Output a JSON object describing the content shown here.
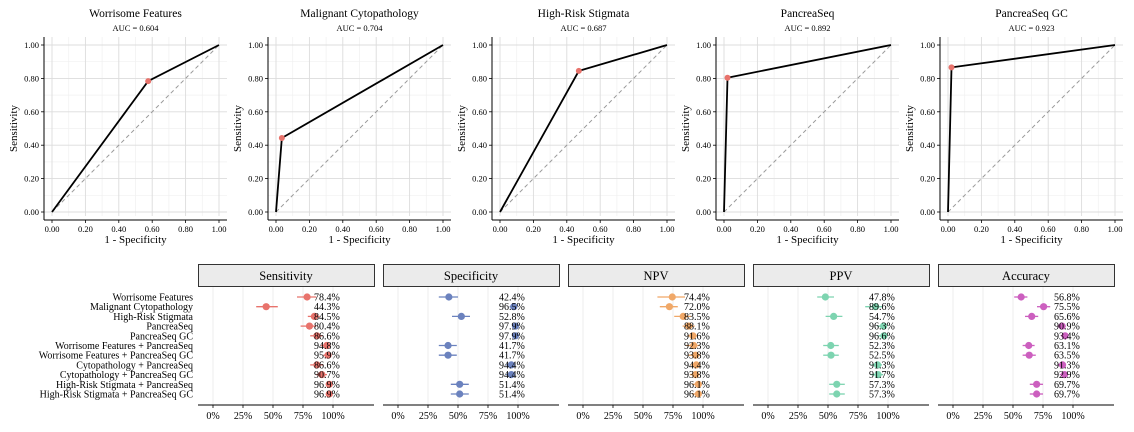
{
  "chart_data": {
    "type": "roc-and-forest",
    "roc_panels": [
      {
        "title": "Worrisome Features",
        "auc_label": "AUC = 0.604",
        "point": [
          0.576,
          0.784
        ]
      },
      {
        "title": "Malignant Cytopathology",
        "auc_label": "AUC = 0.704",
        "point": [
          0.035,
          0.443
        ]
      },
      {
        "title": "High-Risk Stigmata",
        "auc_label": "AUC = 0.687",
        "point": [
          0.472,
          0.845
        ]
      },
      {
        "title": "PancreaSeq",
        "auc_label": "AUC = 0.892",
        "point": [
          0.021,
          0.804
        ]
      },
      {
        "title": "PancreaSeq GC",
        "auc_label": "AUC = 0.923",
        "point": [
          0.021,
          0.866
        ]
      }
    ],
    "roc_axes": {
      "xlabel": "1 - Specificity",
      "ylabel": "Sensitivity",
      "xlim": [
        0,
        1
      ],
      "ylim": [
        0,
        1
      ],
      "x_ticks": [
        "0.00",
        "0.20",
        "0.40",
        "0.60",
        "0.80",
        "1.00"
      ],
      "y_ticks": [
        "0.00",
        "0.20",
        "0.40",
        "0.60",
        "0.80",
        "1.00"
      ]
    },
    "tests": [
      "Worrisome Features",
      "Malignant Cytopathology",
      "High-Risk Stigmata",
      "PancreaSeq",
      "PancreaSeq GC",
      "Worrisome Features + PancreaSeq",
      "Worrisome Features + PancreaSeq GC",
      "Cytopathology + PancreaSeq",
      "Cytopathology + PancreaSeq GC",
      "High-Risk Stigmata + PancreaSeq",
      "High-Risk Stigmata + PancreaSeq GC"
    ],
    "forest_axis": {
      "xlim": [
        0,
        100
      ],
      "ticks": [
        "0%",
        "25%",
        "50%",
        "75%",
        "100%"
      ]
    },
    "metrics": [
      {
        "name": "Sensitivity",
        "color": "#E8736C",
        "values": [
          78.4,
          44.3,
          84.5,
          80.4,
          86.6,
          94.8,
          95.9,
          86.6,
          90.7,
          96.9,
          96.9
        ],
        "ci_low": [
          70,
          36,
          79,
          73,
          81,
          90,
          92,
          81,
          86,
          94,
          94
        ],
        "ci_high": [
          86,
          54,
          89,
          86,
          91,
          98,
          98,
          92,
          95,
          99,
          99
        ],
        "labels": [
          "78.4%",
          "44.3%",
          "84.5%",
          "80.4%",
          "86.6%",
          "94.8%",
          "95.9%",
          "86.6%",
          "90.7%",
          "96.9%",
          "96.9%"
        ]
      },
      {
        "name": "Specificity",
        "color": "#6B82BE",
        "values": [
          42.4,
          96.5,
          52.8,
          97.9,
          97.9,
          41.7,
          41.7,
          94.4,
          94.4,
          51.4,
          51.4
        ],
        "ci_low": [
          34,
          93,
          45,
          95,
          95,
          34,
          34,
          90,
          90,
          44,
          44
        ],
        "ci_high": [
          50,
          99,
          60,
          99,
          99,
          49,
          49,
          97,
          97,
          59,
          59
        ],
        "labels": [
          "42.4%",
          "96.5%",
          "52.8%",
          "97.9%",
          "97.9%",
          "41.7%",
          "41.7%",
          "94.4%",
          "94.4%",
          "51.4%",
          "51.4%"
        ]
      },
      {
        "name": "NPV",
        "color": "#F0A868",
        "values": [
          74.4,
          72.0,
          83.5,
          88.1,
          91.6,
          92.3,
          93.8,
          94.4,
          93.8,
          96.1,
          96.1
        ],
        "ci_low": [
          62,
          64,
          76,
          83,
          87,
          86,
          88,
          90,
          89,
          91,
          91
        ],
        "ci_high": [
          85,
          79,
          90,
          93,
          95,
          97,
          98,
          98,
          97,
          99,
          99
        ],
        "labels": [
          "74.4%",
          "72.0%",
          "83.5%",
          "88.1%",
          "91.6%",
          "92.3%",
          "93.8%",
          "94.4%",
          "93.8%",
          "96.1%",
          "96.1%"
        ]
      },
      {
        "name": "PPV",
        "color": "#7DD4B0",
        "values": [
          47.8,
          89.6,
          54.7,
          96.3,
          96.6,
          52.3,
          52.5,
          91.3,
          91.7,
          57.3,
          57.3
        ],
        "ci_low": [
          41,
          81,
          48,
          91,
          92,
          46,
          46,
          86,
          86,
          51,
          51
        ],
        "ci_high": [
          55,
          95,
          62,
          99,
          99,
          59,
          59,
          95,
          96,
          64,
          64
        ],
        "labels": [
          "47.8%",
          "89.6%",
          "54.7%",
          "96.3%",
          "96.6%",
          "52.3%",
          "52.5%",
          "91.3%",
          "91.7%",
          "57.3%",
          "57.3%"
        ]
      },
      {
        "name": "Accuracy",
        "color": "#CC5FBF",
        "values": [
          56.8,
          75.5,
          65.6,
          90.9,
          93.4,
          63.1,
          63.5,
          91.3,
          92.9,
          69.7,
          69.7
        ],
        "ci_low": [
          51,
          70,
          60,
          87,
          90,
          58,
          58,
          87,
          89,
          64,
          64
        ],
        "ci_high": [
          62,
          81,
          71,
          94,
          96,
          68,
          69,
          94,
          96,
          75,
          75
        ],
        "labels": [
          "56.8%",
          "75.5%",
          "65.6%",
          "90.9%",
          "93.4%",
          "63.1%",
          "63.5%",
          "91.3%",
          "92.9%",
          "69.7%",
          "69.7%"
        ]
      }
    ]
  }
}
